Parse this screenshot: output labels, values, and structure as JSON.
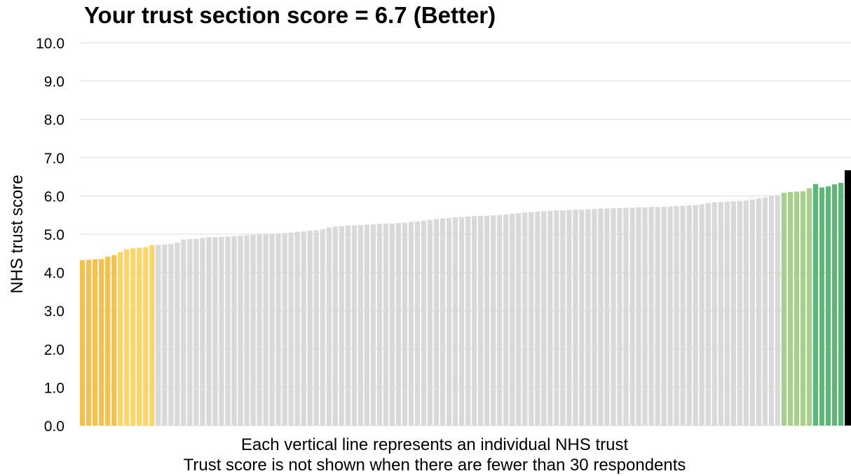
{
  "chart_data": {
    "type": "bar",
    "title": "Your trust section score = 6.7 (Better)",
    "ylabel": "NHS trust score",
    "xlabel": [
      "Each vertical line represents an individual NHS trust",
      "Trust score is not shown when there are fewer than 30 respondents"
    ],
    "ylim": [
      0,
      10
    ],
    "ytick_labels": [
      "0.0",
      "1.0",
      "2.0",
      "3.0",
      "4.0",
      "5.0",
      "6.0",
      "7.0",
      "8.0",
      "9.0",
      "10.0"
    ],
    "grid": "horizontal",
    "colors": {
      "worse": "#f2c14e",
      "low": "#fbd567",
      "average": "#d9d9d9",
      "high": "#a8d08d",
      "best": "#5db57a",
      "your_trust": "#000000"
    },
    "series": [
      {
        "values": [
          4.32,
          4.33,
          4.34,
          4.35,
          4.41,
          4.45,
          4.53,
          4.6,
          4.63,
          4.64,
          4.66,
          4.71,
          4.72,
          4.73,
          4.75,
          4.78,
          4.86,
          4.87,
          4.88,
          4.9,
          4.92,
          4.92,
          4.93,
          4.94,
          4.95,
          4.96,
          4.97,
          4.98,
          4.99,
          5.0,
          5.01,
          5.02,
          5.03,
          5.04,
          5.06,
          5.07,
          5.09,
          5.1,
          5.13,
          5.17,
          5.2,
          5.21,
          5.22,
          5.23,
          5.24,
          5.25,
          5.26,
          5.27,
          5.27,
          5.28,
          5.29,
          5.3,
          5.32,
          5.33,
          5.35,
          5.37,
          5.4,
          5.41,
          5.42,
          5.44,
          5.45,
          5.46,
          5.47,
          5.48,
          5.48,
          5.49,
          5.5,
          5.51,
          5.53,
          5.55,
          5.57,
          5.58,
          5.59,
          5.6,
          5.61,
          5.62,
          5.62,
          5.63,
          5.64,
          5.64,
          5.65,
          5.66,
          5.67,
          5.67,
          5.68,
          5.68,
          5.69,
          5.69,
          5.7,
          5.7,
          5.71,
          5.71,
          5.72,
          5.72,
          5.73,
          5.74,
          5.75,
          5.76,
          5.78,
          5.81,
          5.83,
          5.84,
          5.85,
          5.86,
          5.87,
          5.88,
          5.9,
          5.93,
          5.96,
          6.0,
          6.02,
          6.08,
          6.1,
          6.11,
          6.12,
          6.2,
          6.31,
          6.22,
          6.25,
          6.3,
          6.34,
          6.67
        ],
        "groups": [
          "worse",
          "worse",
          "worse",
          "worse",
          "worse",
          "worse",
          "low",
          "low",
          "low",
          "low",
          "low",
          "low",
          "average",
          "average",
          "average",
          "average",
          "average",
          "average",
          "average",
          "average",
          "average",
          "average",
          "average",
          "average",
          "average",
          "average",
          "average",
          "average",
          "average",
          "average",
          "average",
          "average",
          "average",
          "average",
          "average",
          "average",
          "average",
          "average",
          "average",
          "average",
          "average",
          "average",
          "average",
          "average",
          "average",
          "average",
          "average",
          "average",
          "average",
          "average",
          "average",
          "average",
          "average",
          "average",
          "average",
          "average",
          "average",
          "average",
          "average",
          "average",
          "average",
          "average",
          "average",
          "average",
          "average",
          "average",
          "average",
          "average",
          "average",
          "average",
          "average",
          "average",
          "average",
          "average",
          "average",
          "average",
          "average",
          "average",
          "average",
          "average",
          "average",
          "average",
          "average",
          "average",
          "average",
          "average",
          "average",
          "average",
          "average",
          "average",
          "average",
          "average",
          "average",
          "average",
          "average",
          "average",
          "average",
          "average",
          "average",
          "average",
          "average",
          "average",
          "average",
          "average",
          "average",
          "average",
          "average",
          "average",
          "average",
          "average",
          "average",
          "high",
          "high",
          "high",
          "high",
          "high",
          "best",
          "best",
          "best",
          "best",
          "best",
          "your_trust"
        ]
      }
    ]
  }
}
